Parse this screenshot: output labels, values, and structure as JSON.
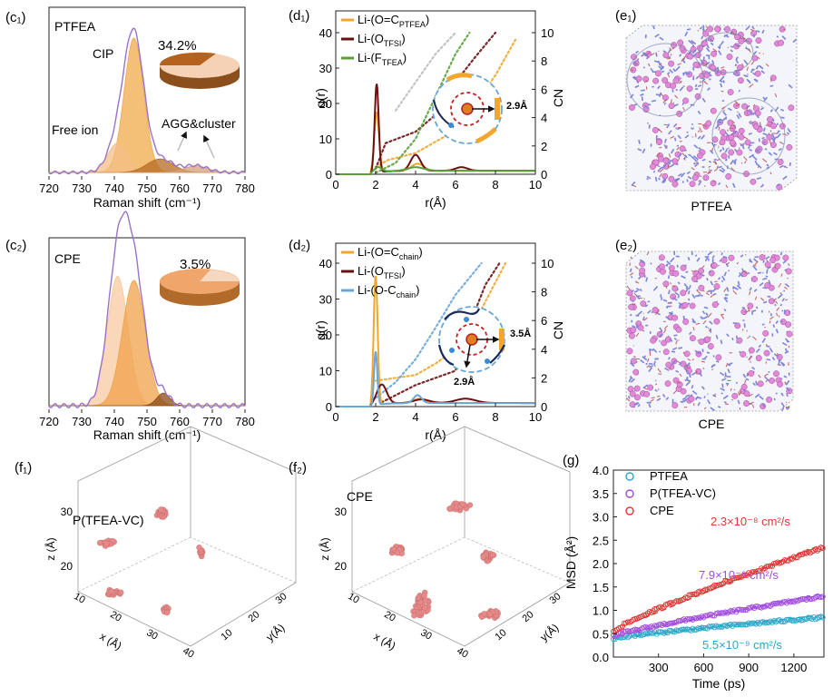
{
  "colors": {
    "ptfea": "#2aa7c8",
    "ptfea_vc": "#a04be0",
    "cpe": "#e03535",
    "orange": "#f2a62d",
    "darkred": "#6a1010",
    "green": "#5aa03a",
    "blue": "#6aa6d6",
    "purple_env": "#9a72c8",
    "pie_dark": "#9a5418",
    "pie_light": "#f6cfb0",
    "pie_mid": "#f0a060",
    "bead": "#e58a8a"
  },
  "panels": {
    "c1": {
      "label": "(c₁)",
      "title": "PTFEA",
      "pie_pct": "34.2%",
      "ann_cip": "CIP",
      "ann_free": "Free ion",
      "ann_agg": "AGG&cluster"
    },
    "c2": {
      "label": "(c₂)",
      "title": "CPE",
      "pie_pct": "3.5%"
    },
    "d1": {
      "label": "(d₁)",
      "inset_dist": "2.9Å"
    },
    "d2": {
      "label": "(d₂)",
      "inset_dist1": "3.5Å",
      "inset_dist2": "2.9Å"
    },
    "e1": {
      "label": "(e₁)",
      "caption": "PTFEA"
    },
    "e2": {
      "label": "(e₂)",
      "caption": "CPE"
    },
    "f1": {
      "label": "(f₁)",
      "title": "P(TFEA-VC)"
    },
    "f2": {
      "label": "(f₂)",
      "title": "CPE"
    },
    "f_axes": {
      "x_label": "x (Å)",
      "y_label": "y(Å)",
      "z_label": "z (Å)",
      "z_ticks": [
        "30",
        "20"
      ],
      "x_ticks": [
        "10",
        "20",
        "30",
        "40"
      ],
      "y_ticks": [
        "30",
        "20",
        "10"
      ]
    },
    "g": {
      "label": "(g)"
    }
  },
  "chart_data": [
    {
      "id": "c1",
      "type": "area",
      "title": "PTFEA",
      "xlabel": "Raman shift (cm⁻¹)",
      "ylabel": "",
      "xlim": [
        720,
        780
      ],
      "xticks": [
        "720",
        "730",
        "740",
        "750",
        "760",
        "770",
        "780"
      ],
      "series": [
        {
          "name": "CIP",
          "center": 746,
          "height": 1.0,
          "width": 3.0
        },
        {
          "name": "Free ion",
          "center": 741,
          "height": 0.22,
          "width": 3.0
        },
        {
          "name": "AGG&cluster",
          "center": 754,
          "height": 0.1,
          "width": 4.0
        },
        {
          "name": "AGG&cluster 2",
          "center": 765,
          "height": 0.05,
          "width": 3.5
        }
      ],
      "pie": {
        "label": "34.2%",
        "fraction": 0.342
      }
    },
    {
      "id": "c2",
      "type": "area",
      "title": "CPE",
      "xlabel": "Raman shift (cm⁻¹)",
      "ylabel": "",
      "xlim": [
        720,
        780
      ],
      "xticks": [
        "720",
        "730",
        "740",
        "750",
        "760",
        "770",
        "780"
      ],
      "series": [
        {
          "name": "Free ion",
          "center": 741,
          "height": 0.62,
          "width": 3.2
        },
        {
          "name": "CIP",
          "center": 746,
          "height": 0.6,
          "width": 3.5
        },
        {
          "name": "AGG&cluster",
          "center": 755,
          "height": 0.06,
          "width": 2.0
        }
      ],
      "pie": {
        "label": "3.5%",
        "fraction": 0.035
      }
    },
    {
      "id": "d1",
      "type": "line",
      "xlabel": "r(Å)",
      "ylabel": "g(r)",
      "y2label": "CN",
      "xlim": [
        0,
        10
      ],
      "ylim": [
        0,
        40
      ],
      "y2lim": [
        0,
        10
      ],
      "xticks": [
        "0",
        "2",
        "4",
        "6",
        "8",
        "10"
      ],
      "yticks": [
        "0",
        "10",
        "20",
        "30",
        "40"
      ],
      "y2ticks": [
        "0",
        "2",
        "4",
        "6",
        "8",
        "10"
      ],
      "legend": [
        {
          "prefix": "Li-(O=C",
          "sub": "PTFEA",
          "suffix": ")"
        },
        {
          "prefix": "Li-(O",
          "sub": "TFSI",
          "suffix": ")"
        },
        {
          "prefix": "Li-(F",
          "sub": "TFEA",
          "suffix": ")"
        }
      ],
      "series": [
        {
          "name": "Li-(O=C PTFEA)",
          "peaks": [
            [
              2.05,
              17,
              0.12
            ],
            [
              4.1,
              2.0,
              0.3
            ]
          ]
        },
        {
          "name": "Li-(O TFSI)",
          "peaks": [
            [
              2.05,
              25,
              0.1
            ],
            [
              4.0,
              4.5,
              0.25
            ],
            [
              6.3,
              1.0,
              0.3
            ]
          ]
        },
        {
          "name": "Li-(F TFEA)",
          "peaks": [
            [
              2.1,
              1.5,
              0.2
            ],
            [
              4.0,
              1.0,
              0.4
            ]
          ]
        }
      ],
      "cn": [
        {
          "name": "CN O=C PTFEA",
          "x": [
            2,
            2.6,
            4,
            5.5,
            7,
            8,
            9
          ],
          "y": [
            0.5,
            1,
            1.5,
            2.7,
            5,
            7,
            9.5
          ]
        },
        {
          "name": "CN O TFSI",
          "x": [
            2,
            2.5,
            4,
            5,
            6,
            7,
            8
          ],
          "y": [
            0.4,
            2.2,
            3,
            4.2,
            6.5,
            8.3,
            10
          ]
        },
        {
          "name": "CN F TFEA",
          "x": [
            2,
            3,
            4,
            5,
            6,
            6.7
          ],
          "y": [
            0.1,
            0.8,
            2.5,
            5.5,
            8.5,
            10
          ]
        },
        {
          "name": "CN gray",
          "x": [
            3,
            4,
            5,
            6
          ],
          "y": [
            4.5,
            6.5,
            8.5,
            10
          ]
        }
      ]
    },
    {
      "id": "d2",
      "type": "line",
      "xlabel": "r(Å)",
      "ylabel": "g(r)",
      "y2label": "CN",
      "xlim": [
        0,
        10
      ],
      "ylim": [
        0,
        40
      ],
      "y2lim": [
        0,
        10
      ],
      "xticks": [
        "0",
        "2",
        "4",
        "6",
        "8",
        "10"
      ],
      "yticks": [
        "0",
        "10",
        "20",
        "30",
        "40"
      ],
      "y2ticks": [
        "0",
        "2",
        "4",
        "6",
        "8",
        "10"
      ],
      "legend": [
        {
          "prefix": "Li-(O=C",
          "sub": "chain",
          "suffix": ")"
        },
        {
          "prefix": "Li-(O",
          "sub": "TFSI",
          "suffix": ")"
        },
        {
          "prefix": "Li-(O-C",
          "sub": "chain",
          "suffix": ")"
        }
      ],
      "series": [
        {
          "name": "Li-(O=C chain)",
          "peaks": [
            [
              2.0,
              36,
              0.1
            ],
            [
              4.2,
              1.2,
              0.3
            ]
          ]
        },
        {
          "name": "Li-(O TFSI)",
          "peaks": [
            [
              2.3,
              5.5,
              0.25
            ],
            [
              4.3,
              1.0,
              0.4
            ],
            [
              6.5,
              1.2,
              0.5
            ]
          ]
        },
        {
          "name": "Li-(O-C chain)",
          "peaks": [
            [
              2.0,
              15,
              0.08
            ],
            [
              4.1,
              2.2,
              0.2
            ]
          ]
        }
      ],
      "cn": [
        {
          "name": "CN O=C chain",
          "x": [
            2,
            4,
            5,
            6,
            7,
            8.5
          ],
          "y": [
            1.8,
            2.2,
            3,
            4,
            6,
            10
          ]
        },
        {
          "name": "CN O TFSI",
          "x": [
            2.3,
            4,
            6,
            6.5,
            7.5,
            8.2
          ],
          "y": [
            0.3,
            1.5,
            2.5,
            5,
            8.5,
            10
          ]
        },
        {
          "name": "CN O-C chain",
          "x": [
            2,
            3,
            4,
            5,
            6,
            7.3
          ],
          "y": [
            0.6,
            1.7,
            3.3,
            5.5,
            7.8,
            10
          ]
        }
      ]
    },
    {
      "id": "g",
      "type": "scatter",
      "xlabel": "Time (ps)",
      "ylabel": "MSD (Å²)",
      "xlim": [
        0,
        1400
      ],
      "ylim": [
        0,
        4.0
      ],
      "xticks": [
        "300",
        "600",
        "900",
        "1200"
      ],
      "yticks": [
        "0.0",
        "0.5",
        "1.0",
        "1.5",
        "2.0",
        "2.5",
        "3.0",
        "3.5",
        "4.0"
      ],
      "series": [
        {
          "name": "PTFEA",
          "start": 0.4,
          "end": 0.85,
          "slope_label": "5.5×10⁻⁹ cm²/s"
        },
        {
          "name": "P(TFEA-VC)",
          "start": 0.45,
          "end": 1.3,
          "slope_label": "7.9×10⁻⁹ cm²/s"
        },
        {
          "name": "CPE",
          "start": 0.55,
          "end": 2.35,
          "slope_label": "2.3×10⁻⁸ cm²/s"
        }
      ]
    }
  ]
}
